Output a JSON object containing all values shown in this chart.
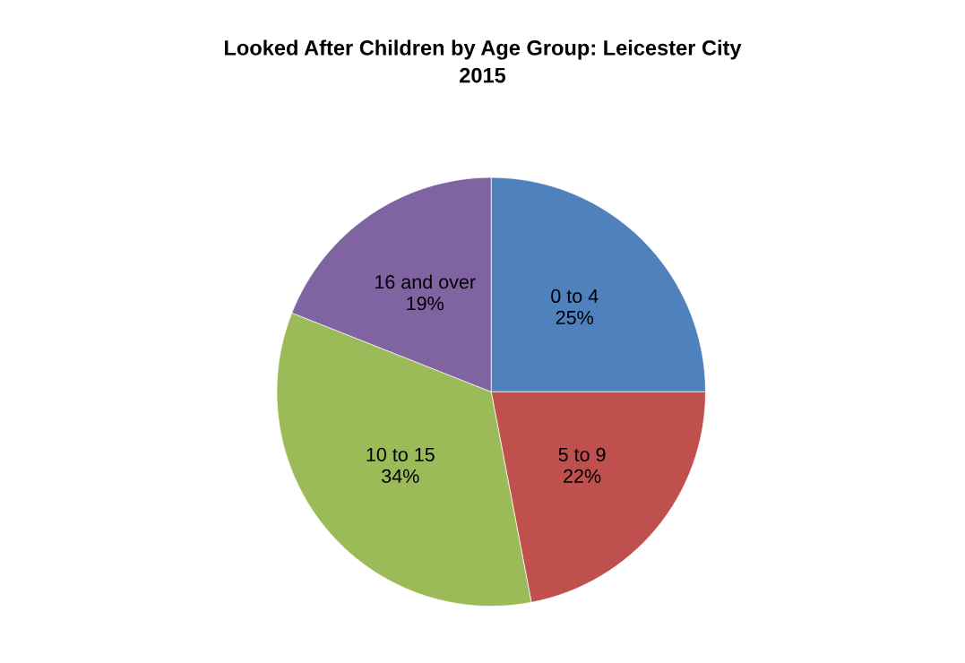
{
  "chart_data": {
    "type": "pie",
    "title": "Looked After Children by Age Group: Leicester City\n2015",
    "categories": [
      "0 to 4",
      "5 to 9",
      "10 to 15",
      "16 and over"
    ],
    "values": [
      25,
      22,
      34,
      19
    ],
    "value_labels": [
      "25%",
      "22%",
      "34%",
      "19%"
    ],
    "colors": [
      "#4f81bd",
      "#c0504d",
      "#9bbb59",
      "#8064a2"
    ],
    "legend": false
  }
}
